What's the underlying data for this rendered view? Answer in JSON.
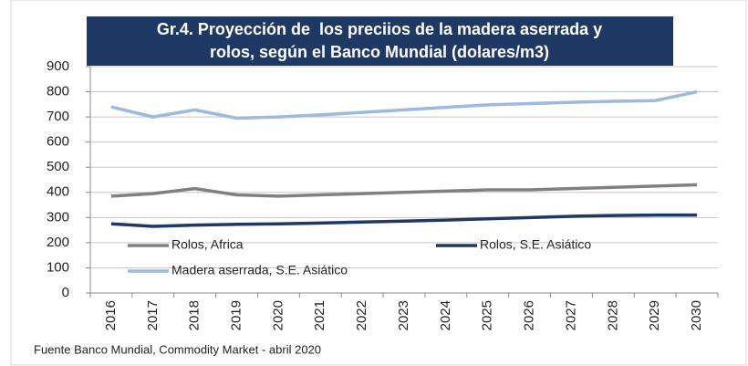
{
  "chart_data": {
    "type": "line",
    "title": [
      "Gr.4. Proyección de  los preciios de la madera aserrada y",
      "rolos, según el Banco Mundial (dolares/m3)"
    ],
    "categories": [
      "2016",
      "2017",
      "2018",
      "2019",
      "2020",
      "2021",
      "2022",
      "2023",
      "2024",
      "2025",
      "2026",
      "2027",
      "2028",
      "2029",
      "2030"
    ],
    "series": [
      {
        "name": "Rolos, Africa",
        "color": "#808080",
        "values": [
          385,
          395,
          415,
          390,
          385,
          390,
          395,
          400,
          405,
          410,
          410,
          415,
          420,
          425,
          430
        ]
      },
      {
        "name": "Rolos, S.E. Asiático",
        "color": "#1f3864",
        "values": [
          275,
          265,
          270,
          273,
          275,
          278,
          282,
          286,
          290,
          295,
          300,
          305,
          308,
          310,
          310
        ]
      },
      {
        "name": "Madera aserrada, S.E. Asiático",
        "color": "#9db9de",
        "values": [
          740,
          700,
          728,
          695,
          700,
          708,
          718,
          728,
          738,
          748,
          753,
          758,
          762,
          765,
          800
        ]
      }
    ],
    "ylim": [
      0,
      900
    ],
    "yticks": [
      0,
      100,
      200,
      300,
      400,
      500,
      600,
      700,
      800,
      900
    ],
    "grid": true,
    "source": "Fuente Banco Mundial, Commodity Market - abril 2020"
  }
}
